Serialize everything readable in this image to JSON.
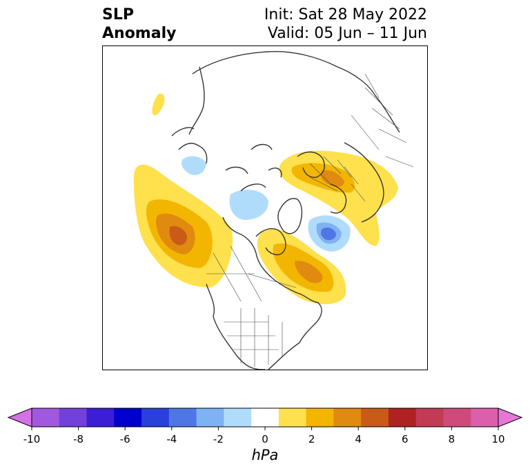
{
  "title": {
    "left_line1": "SLP",
    "left_line2": "Anomaly",
    "right_line1": "Init: Sat 28 May 2022",
    "right_line2": "Valid: 05 Jun – 11 Jun"
  },
  "colorbar": {
    "label": "hPa",
    "ticks": [
      "-10",
      "-8",
      "-6",
      "-4",
      "-2",
      "0",
      "2",
      "4",
      "6",
      "8",
      "10"
    ],
    "levels": [
      -10,
      -9,
      -8,
      -7,
      -6,
      -5,
      -4,
      -3,
      -2,
      -1,
      1,
      2,
      3,
      4,
      5,
      6,
      7,
      8,
      9,
      10
    ],
    "colors": [
      "#d571e6",
      "#a058e0",
      "#7240db",
      "#3c1ed6",
      "#0000cc",
      "#2a40dc",
      "#4f76e6",
      "#7eb2f2",
      "#b0dcfb",
      "#ffffff",
      "#ffe04d",
      "#f2b600",
      "#e08a10",
      "#c95a18",
      "#b02222",
      "#c23a55",
      "#cf4a7a",
      "#db5faa",
      "#e876d8"
    ],
    "extend": "both"
  },
  "map": {
    "projection": "north-polar-stereographic",
    "region": "Northern Hemisphere (North America / Arctic / Europe)",
    "colors": {
      "light_yellow": "#ffe04d",
      "gold": "#f2b600",
      "orange": "#e08a10",
      "dark_orange": "#c95a18",
      "light_blue": "#b0dcfb",
      "mid_blue": "#7eb2f2",
      "blue": "#4f76e6",
      "coast": "#333333"
    }
  }
}
